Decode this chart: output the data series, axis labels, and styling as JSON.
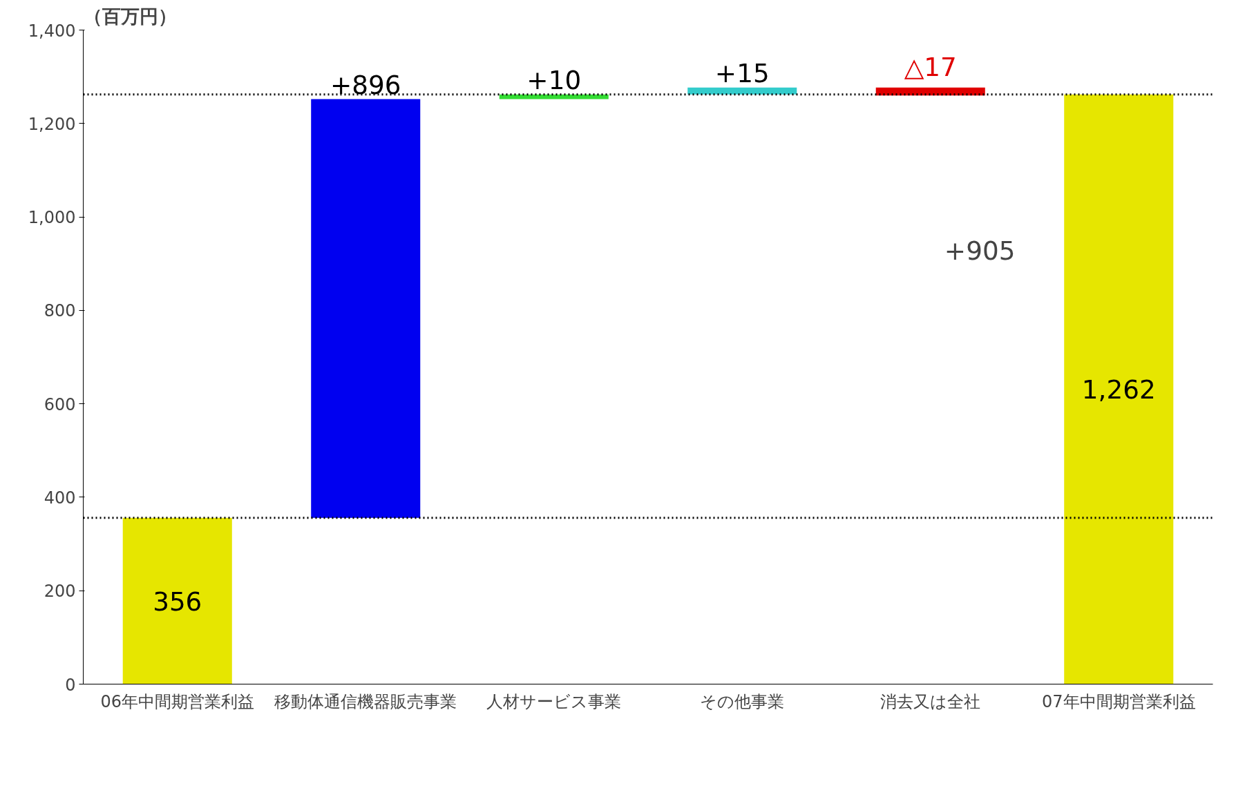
{
  "chart_data": {
    "type": "bar",
    "ylabel": "（百万円）",
    "categories": [
      "06年中間期営業利益",
      "移動体通信機器販売事業",
      "人材サービス事業",
      "その他事業",
      "消去又は全社",
      "07年中間期営業利益"
    ],
    "values": [
      356,
      896,
      10,
      15,
      -17,
      1262
    ],
    "base": [
      null,
      356,
      1252,
      1262,
      1277,
      null
    ],
    "colors": [
      "#e6e600",
      "#0000f0",
      "#33dd33",
      "#33cccc",
      "#e00000",
      "#e6e600"
    ],
    "value_labels": [
      "356",
      "+896",
      "+10",
      "+15",
      "△17",
      "1,262"
    ],
    "ylim": [
      0,
      1400
    ],
    "yticks": [
      0,
      200,
      400,
      600,
      800,
      {
        "value": 1000,
        "label": "1,000"
      },
      {
        "value": 1200,
        "label": "1,200"
      },
      {
        "value": 1400,
        "label": "1,400"
      }
    ],
    "ref_lines": [
      {
        "axis": "y",
        "value": 356,
        "line_style": "dotted",
        "color": "#000000"
      },
      {
        "axis": "y",
        "value": 1262,
        "line_style": "dotted",
        "color": "#000000"
      }
    ],
    "annotations": [
      "+905"
    ],
    "grid": false
  }
}
